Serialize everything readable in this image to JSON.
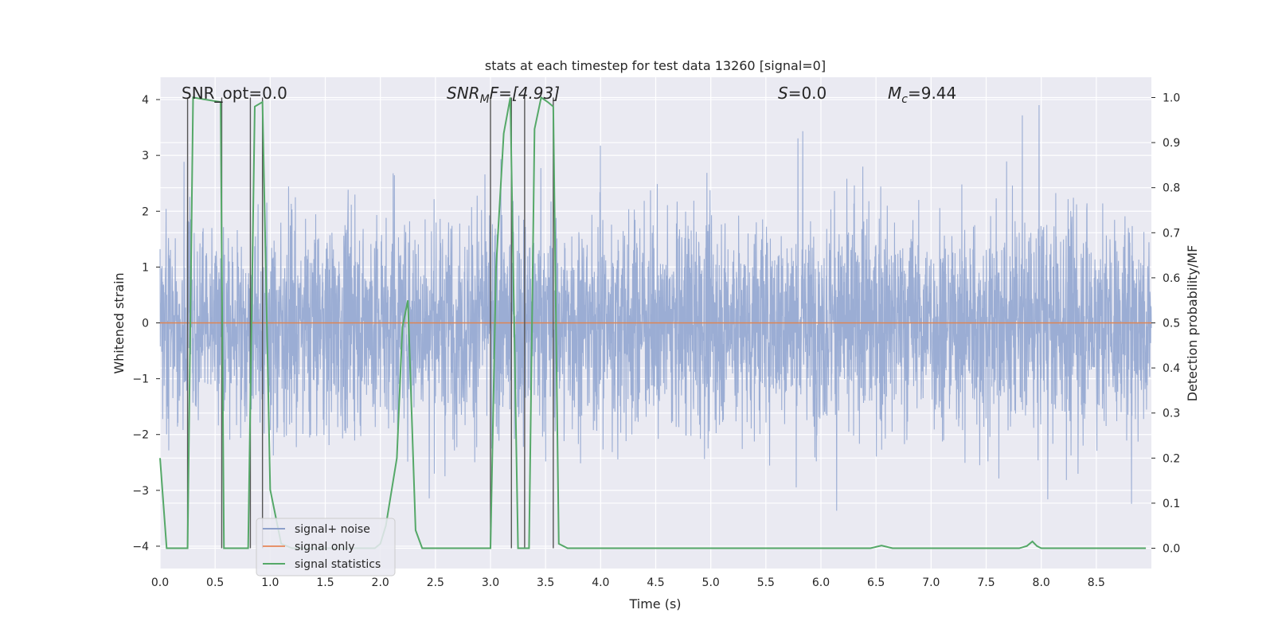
{
  "chart_data": {
    "type": "line",
    "title": "stats at each timestep for test data 13260 [signal=0]",
    "xlabel": "Time (s)",
    "ylabel_left": "Whitened strain",
    "ylabel_right": "Detection probability/MF",
    "xlim": [
      0,
      9.0
    ],
    "ylim_left": [
      -4.4,
      4.4
    ],
    "ylim_right": [
      -0.045,
      1.045
    ],
    "xticks": [
      0.0,
      0.5,
      1.0,
      1.5,
      2.0,
      2.5,
      3.0,
      3.5,
      4.0,
      4.5,
      5.0,
      5.5,
      6.0,
      6.5,
      7.0,
      7.5,
      8.0,
      8.5
    ],
    "xtick_labels": [
      "0.0",
      "0.5",
      "1.0",
      "1.5",
      "2.0",
      "2.5",
      "3.0",
      "3.5",
      "4.0",
      "4.5",
      "5.0",
      "5.5",
      "6.0",
      "6.5",
      "7.0",
      "7.5",
      "8.0",
      "8.5"
    ],
    "yticks_left": [
      -4,
      -3,
      -2,
      -1,
      0,
      1,
      2,
      3,
      4
    ],
    "ytick_labels_left": [
      "−4",
      "−3",
      "−2",
      "−1",
      "0",
      "1",
      "2",
      "3",
      "4"
    ],
    "yticks_right": [
      0.0,
      0.1,
      0.2,
      0.3,
      0.4,
      0.5,
      0.6,
      0.7,
      0.8,
      0.9,
      1.0
    ],
    "ytick_labels_right": [
      "0.0",
      "0.1",
      "0.2",
      "0.3",
      "0.4",
      "0.5",
      "0.6",
      "0.7",
      "0.8",
      "0.9",
      "1.0"
    ],
    "annotations": {
      "snr_opt": "SNR_opt=0.0",
      "snr_mf_base": "SNR",
      "snr_mf_sub": "M",
      "snr_mf_rest": "F=[4.93]",
      "s_var": "S",
      "s_val": "=0.0",
      "mc_base": "M",
      "mc_sub": "c",
      "mc_val": "=9.44"
    },
    "legend": {
      "position": "lower-left",
      "entries": [
        {
          "label": "signal+ noise",
          "color": "#8da0cb"
        },
        {
          "label": "signal only",
          "color": "#e7926b"
        },
        {
          "label": "signal statistics",
          "color": "#55a868"
        }
      ]
    },
    "series": [
      {
        "name": "signal+ noise",
        "axis": "left",
        "kind": "noise",
        "color": "#92a6d0",
        "samples": 4096,
        "typical_amplitude": 1.5,
        "peak_min": -3.8,
        "peak_max": 3.9
      },
      {
        "name": "signal only",
        "axis": "left",
        "color": "#dd8452",
        "x": [
          0.0,
          9.0
        ],
        "y": [
          0.0,
          0.0
        ]
      },
      {
        "name": "signal statistics",
        "axis": "right",
        "color": "#55a868",
        "x": [
          0.0,
          0.06,
          0.25,
          0.3,
          0.55,
          0.58,
          0.62,
          0.8,
          0.86,
          0.93,
          1.0,
          1.1,
          1.2,
          1.95,
          2.0,
          2.05,
          2.15,
          2.2,
          2.25,
          2.32,
          2.38,
          2.45,
          3.0,
          3.05,
          3.12,
          3.18,
          3.25,
          3.35,
          3.4,
          3.46,
          3.52,
          3.57,
          3.62,
          3.7,
          6.45,
          6.55,
          6.65,
          7.8,
          7.87,
          7.92,
          7.96,
          8.0,
          8.95
        ],
        "y": [
          0.2,
          0.0,
          0.0,
          1.0,
          0.99,
          0.0,
          0.0,
          0.0,
          0.98,
          0.99,
          0.13,
          0.01,
          0.0,
          0.0,
          0.01,
          0.05,
          0.2,
          0.49,
          0.55,
          0.04,
          0.0,
          0.0,
          0.0,
          0.62,
          0.92,
          1.0,
          0.0,
          0.0,
          0.93,
          1.0,
          0.99,
          0.98,
          0.01,
          0.0,
          0.0,
          0.006,
          0.0,
          0.0,
          0.005,
          0.015,
          0.005,
          0.0,
          0.0
        ]
      }
    ],
    "vertical_lines": [
      0.25,
      0.56,
      0.82,
      0.93,
      3.0,
      3.19,
      3.31,
      3.57
    ]
  }
}
